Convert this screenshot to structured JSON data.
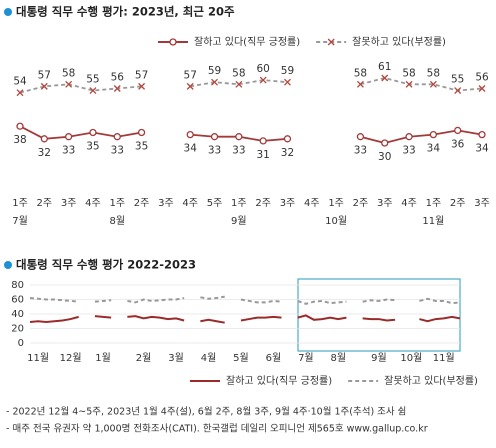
{
  "chart_data": [
    {
      "type": "line",
      "title": "대통령 직무 수행 평가: 2023년, 최근 20주",
      "categories": [
        "1주",
        "2주",
        "3주",
        "4주",
        "1주",
        "2주",
        "3주",
        "4주",
        "5주",
        "1주",
        "2주",
        "3주",
        "4주",
        "1주",
        "2주",
        "3주",
        "4주",
        "1주",
        "2주",
        "3주"
      ],
      "month_labels": [
        "7월",
        null,
        null,
        null,
        "8월",
        null,
        null,
        null,
        null,
        "9월",
        null,
        null,
        null,
        "10월",
        null,
        null,
        null,
        "11월",
        null,
        null
      ],
      "series": [
        {
          "name": "잘하고 있다(직무 긍정률)",
          "color": "#a33a3a",
          "style": "solid",
          "marker": "circle",
          "values": [
            38,
            32,
            33,
            35,
            33,
            35,
            null,
            34,
            33,
            33,
            31,
            32,
            null,
            null,
            33,
            30,
            33,
            34,
            36,
            34
          ]
        },
        {
          "name": "잘못하고 있다(부정률)",
          "color": "#999999",
          "marker_color": "#b5463c",
          "style": "dashed",
          "marker": "x",
          "values": [
            54,
            57,
            58,
            55,
            56,
            57,
            null,
            57,
            59,
            58,
            60,
            59,
            null,
            null,
            58,
            61,
            58,
            58,
            55,
            56
          ]
        }
      ]
    },
    {
      "type": "line",
      "title": "대통령 직무 수행 평가 2022-2023",
      "categories": [
        null,
        "11월",
        null,
        null,
        null,
        "12월",
        null,
        null,
        null,
        "1월",
        null,
        null,
        null,
        null,
        "2월",
        null,
        null,
        null,
        "3월",
        null,
        null,
        null,
        "4월",
        null,
        null,
        null,
        "5월",
        null,
        null,
        null,
        "6월",
        null,
        null,
        null,
        "7월",
        null,
        null,
        null,
        "8월",
        null,
        null,
        null,
        null,
        "9월",
        null,
        null,
        null,
        "10월",
        null,
        null,
        null,
        "11월",
        null,
        null
      ],
      "ylim": [
        0,
        80
      ],
      "yticks": [
        0,
        20,
        40,
        60,
        80
      ],
      "grid": true,
      "series": [
        {
          "name": "잘하고 있다(직무 긍정률)",
          "color": "#9b2b2b",
          "style": "solid",
          "values": [
            29,
            30,
            29,
            30,
            31,
            33,
            36,
            null,
            37,
            36,
            35,
            null,
            36,
            37,
            34,
            36,
            35,
            33,
            34,
            31,
            null,
            30,
            32,
            30,
            28,
            null,
            31,
            33,
            35,
            35,
            36,
            35,
            null,
            35,
            38,
            32,
            33,
            35,
            33,
            35,
            null,
            34,
            33,
            33,
            31,
            32,
            null,
            null,
            33,
            30,
            33,
            34,
            36,
            34
          ]
        },
        {
          "name": "잘못하고 있다(부정률)",
          "color": "#999999",
          "style": "dashed",
          "values": [
            62,
            61,
            60,
            60,
            59,
            58,
            57,
            null,
            57,
            58,
            59,
            null,
            58,
            56,
            60,
            58,
            59,
            60,
            60,
            62,
            null,
            63,
            61,
            62,
            64,
            null,
            60,
            58,
            56,
            56,
            58,
            57,
            null,
            58,
            54,
            57,
            58,
            55,
            56,
            57,
            null,
            57,
            59,
            58,
            60,
            59,
            null,
            null,
            58,
            61,
            58,
            58,
            55,
            56
          ]
        }
      ]
    }
  ],
  "notes": [
    "- 2022년 12월 4~5주, 2023년 1월 4주(설), 6월 2주, 8월 3주, 9월 4주·10월 1주(추석) 조사 쉼",
    "- 매주 전국 유권자 약 1,000명 전화조사(CATI). 한국갤럽 데일리 오피니언 제565호 www.gallup.co.kr"
  ]
}
